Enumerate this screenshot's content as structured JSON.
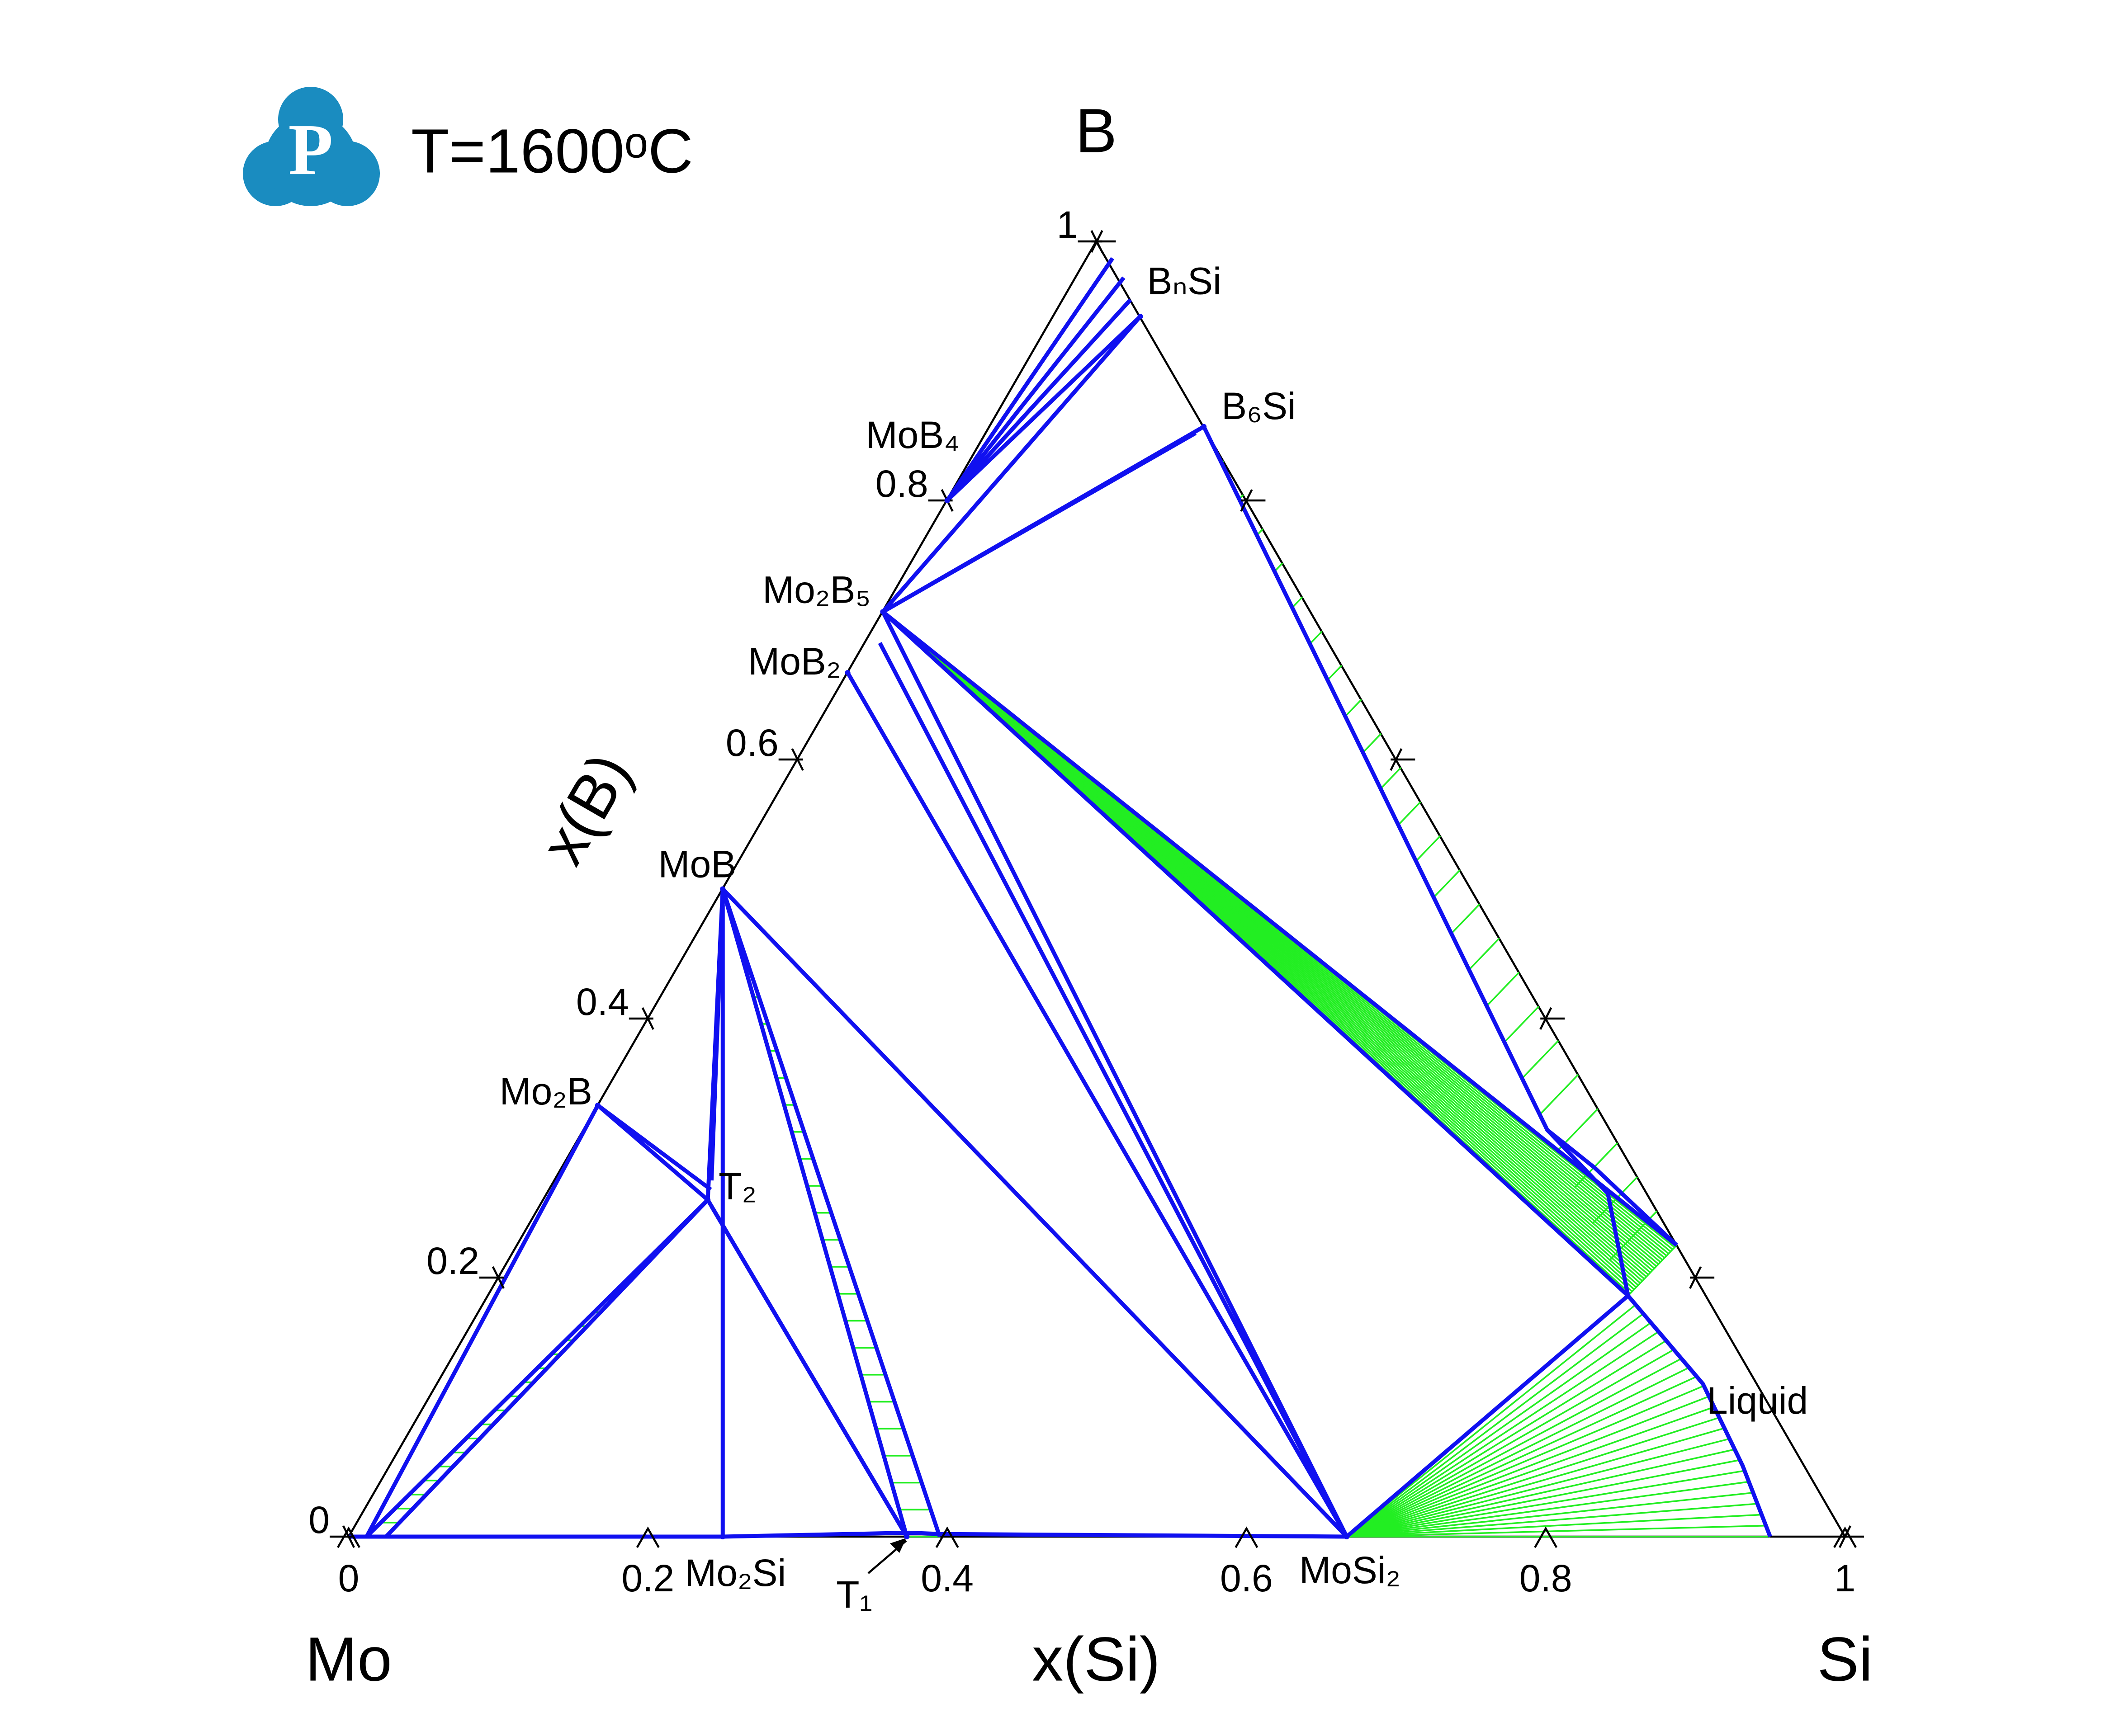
{
  "chart_data": {
    "type": "ternary",
    "title": "T=1600ᵒC",
    "logo": "P",
    "corners": {
      "left": "Mo",
      "right": "Si",
      "top": "B"
    },
    "xlabel": "x(Si)",
    "ylabel": "x(B)",
    "xlim": [
      0,
      1
    ],
    "ylim": [
      0,
      1
    ],
    "xticks": [
      0,
      0.2,
      0.4,
      0.6,
      0.8,
      1
    ],
    "yticks": [
      0,
      0.2,
      0.4,
      0.6,
      0.8,
      1
    ],
    "boundary_color": "#1010f0",
    "tie_color": "#22ee22",
    "phases": [
      {
        "name": "Mo₂B",
        "composition": [
          0,
          0.333
        ]
      },
      {
        "name": "MoB",
        "composition": [
          0,
          0.5
        ]
      },
      {
        "name": "MoB₂",
        "composition": [
          0,
          0.667
        ]
      },
      {
        "name": "Mo₂B₅",
        "composition": [
          0,
          0.714
        ]
      },
      {
        "name": "MoB₄",
        "composition": [
          0,
          0.8
        ]
      },
      {
        "name": "BₙSi",
        "composition": [
          0.058,
          0.942
        ]
      },
      {
        "name": "B₆Si",
        "composition": [
          0.143,
          0.857
        ]
      },
      {
        "name": "T₂",
        "composition": [
          0.11,
          0.26
        ]
      },
      {
        "name": "Mo₂Si",
        "composition": [
          0.25,
          0
        ]
      },
      {
        "name": "T₁",
        "composition": [
          0.373,
          0
        ]
      },
      {
        "name": "MoSi₂",
        "composition": [
          0.667,
          0
        ]
      }
    ],
    "annotations": [
      "Liquid"
    ],
    "boundaries": [
      [
        [
          0.012,
          0
        ],
        [
          0,
          0.333
        ]
      ],
      [
        [
          0.012,
          0
        ],
        [
          0.11,
          0.26
        ]
      ],
      [
        [
          0.025,
          0
        ],
        [
          0.11,
          0.26
        ]
      ],
      [
        [
          0,
          0.333
        ],
        [
          0.11,
          0.26
        ]
      ],
      [
        [
          0,
          0.333
        ],
        [
          0.108,
          0.268
        ]
      ],
      [
        [
          0.11,
          0.26
        ],
        [
          0,
          0.5
        ]
      ],
      [
        [
          0.105,
          0.275
        ],
        [
          0,
          0.5
        ]
      ],
      [
        [
          0,
          0.5
        ],
        [
          0.25,
          0
        ]
      ],
      [
        [
          0.11,
          0.26
        ],
        [
          0.373,
          0
        ]
      ],
      [
        [
          0.115,
          0.255
        ],
        [
          0.373,
          0
        ]
      ],
      [
        [
          0,
          0.5
        ],
        [
          0.373,
          0
        ]
      ],
      [
        [
          0,
          0.5
        ],
        [
          0.395,
          0
        ]
      ],
      [
        [
          0,
          0.5
        ],
        [
          0.667,
          0
        ]
      ],
      [
        [
          0,
          0.667
        ],
        [
          0.667,
          0
        ]
      ],
      [
        [
          0,
          0.714
        ],
        [
          0.667,
          0
        ]
      ],
      [
        [
          0.01,
          0.69
        ],
        [
          0.667,
          0
        ]
      ],
      [
        [
          0,
          0.714
        ],
        [
          0.775,
          0.225
        ]
      ],
      [
        [
          0,
          0.714
        ],
        [
          0.762,
          0.186
        ]
      ],
      [
        [
          0,
          0.714
        ],
        [
          0.143,
          0.857
        ]
      ],
      [
        [
          0,
          0.714
        ],
        [
          0.14,
          0.852
        ]
      ],
      [
        [
          0,
          0.8
        ],
        [
          0.017,
          0.987
        ]
      ],
      [
        [
          0,
          0.8
        ],
        [
          0.032,
          0.972
        ]
      ],
      [
        [
          0,
          0.8
        ],
        [
          0.045,
          0.955
        ]
      ],
      [
        [
          0,
          0.8
        ],
        [
          0.058,
          0.942
        ]
      ],
      [
        [
          0,
          0.714
        ],
        [
          0.058,
          0.942
        ]
      ],
      [
        [
          0.143,
          0.857
        ],
        [
          0.644,
          0.314
        ],
        [
          0.709,
          0.265
        ],
        [
          0.762,
          0.186
        ]
      ],
      [
        [
          0.644,
          0.314
        ],
        [
          0.69,
          0.285
        ],
        [
          0.775,
          0.225
        ]
      ],
      [
        [
          0.667,
          0
        ],
        [
          0.762,
          0.186
        ]
      ],
      [
        [
          0.762,
          0.186
        ],
        [
          0.846,
          0.118
        ],
        [
          0.904,
          0.055
        ],
        [
          0.95,
          0
        ]
      ],
      [
        [
          0,
          0
        ],
        [
          0.25,
          0
        ],
        [
          0.373,
          0.003
        ],
        [
          0.395,
          0.002
        ],
        [
          0.667,
          0
        ]
      ]
    ],
    "tie_regions": [
      {
        "a": [
          [
            0.012,
            0
          ],
          [
            0.11,
            0.26
          ]
        ],
        "b": [
          [
            0.025,
            0
          ],
          [
            0.11,
            0.26
          ]
        ]
      },
      {
        "a": [
          [
            0.373,
            0
          ],
          [
            0,
            0.5
          ]
        ],
        "b": [
          [
            0.395,
            0
          ],
          [
            0,
            0.5
          ]
        ]
      },
      {
        "a": [
          [
            0,
            0.714
          ]
        ],
        "b": [
          [
            0.775,
            0.225
          ],
          [
            0.762,
            0.186
          ]
        ]
      },
      {
        "a": [
          [
            0.143,
            0.857
          ],
          [
            0.775,
            0.225
          ]
        ],
        "b": [
          [
            0.143,
            0.857
          ],
          [
            0.644,
            0.314
          ],
          [
            0.762,
            0.186
          ]
        ]
      },
      {
        "a": [
          [
            0.667,
            0
          ]
        ],
        "b": [
          [
            0.762,
            0.186
          ],
          [
            0.846,
            0.118
          ],
          [
            0.904,
            0.055
          ],
          [
            0.95,
            0
          ]
        ]
      }
    ]
  }
}
